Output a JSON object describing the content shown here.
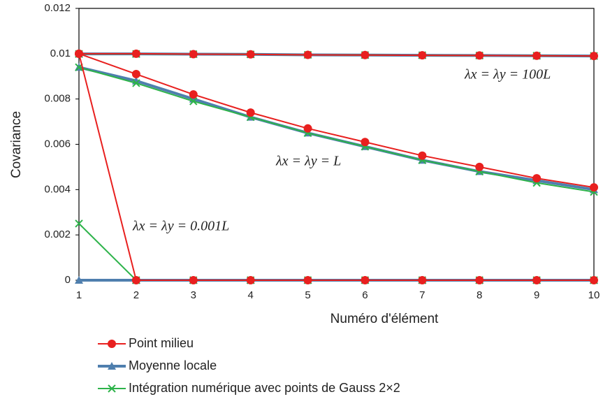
{
  "chart_data": {
    "type": "line",
    "xlabel": "Numéro d'élément",
    "ylabel": "Covariance",
    "x": [
      1,
      2,
      3,
      4,
      5,
      6,
      7,
      8,
      9,
      10
    ],
    "xlim": [
      1,
      10
    ],
    "xticks": [
      1,
      2,
      3,
      4,
      5,
      6,
      7,
      8,
      9,
      10
    ],
    "ylim": [
      0,
      0.012
    ],
    "yticks": [
      0,
      0.002,
      0.004,
      0.006,
      0.008,
      0.01,
      0.012
    ],
    "grid": false,
    "annotations": [
      "λx = λy = 100L",
      "λx = λy = L",
      "λx = λy = 0.001L"
    ],
    "series": [
      {
        "name": "Point milieu",
        "color": "#e8201f",
        "marker": "circle",
        "curves": [
          [
            0.01,
            0.01,
            0.00998,
            0.00997,
            0.00995,
            0.00994,
            0.00993,
            0.00992,
            0.00991,
            0.0099
          ],
          [
            0.01,
            0.0091,
            0.0082,
            0.0074,
            0.0067,
            0.0061,
            0.0055,
            0.005,
            0.0045,
            0.0041
          ],
          [
            0.01,
            0,
            0,
            0,
            0,
            0,
            0,
            0,
            0,
            0
          ]
        ]
      },
      {
        "name": "Moyenne locale",
        "color": "#4f7fae",
        "marker": "triangle",
        "curves": [
          [
            0.00999,
            0.00999,
            0.00998,
            0.00997,
            0.00995,
            0.00994,
            0.00993,
            0.00992,
            0.00991,
            0.0099
          ],
          [
            0.0094,
            0.0088,
            0.008,
            0.0072,
            0.0065,
            0.0059,
            0.0053,
            0.0048,
            0.0044,
            0.004
          ],
          [
            0,
            0,
            0,
            0,
            0,
            0,
            0,
            0,
            0,
            0
          ]
        ]
      },
      {
        "name": "Intégration numérique avec points de Gauss 2×2",
        "color": "#2db34a",
        "marker": "x",
        "curves": [
          [
            0.00999,
            0.00999,
            0.00998,
            0.00997,
            0.00995,
            0.00994,
            0.00993,
            0.00992,
            0.00991,
            0.0099
          ],
          [
            0.0094,
            0.0087,
            0.0079,
            0.0072,
            0.0065,
            0.0059,
            0.0053,
            0.0048,
            0.0043,
            0.0039
          ],
          [
            0.0025,
            0,
            0,
            0,
            0,
            0,
            0,
            0,
            0,
            0
          ]
        ]
      }
    ]
  }
}
